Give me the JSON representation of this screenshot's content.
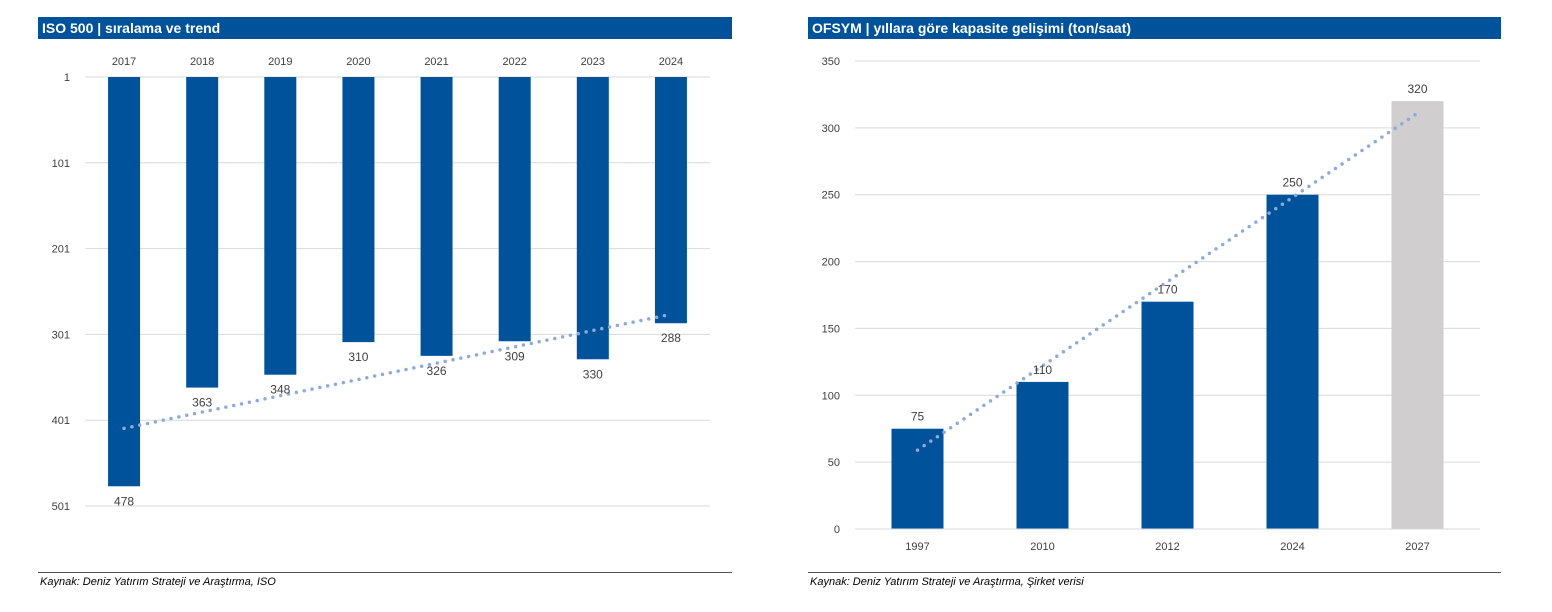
{
  "charts": [
    {
      "header": "ISO 500 | sıralama ve trend",
      "source": "Kaynak: Deniz Yatırım Strateji ve Araştırma, ISO"
    },
    {
      "header": "OFSYM | yıllara göre kapasite gelişimi (ton/saat)",
      "source": "Kaynak: Deniz Yatırım Strateji ve Araştırma, Şirket verisi"
    }
  ],
  "colors": {
    "header_bg": "#00529b",
    "bar": "#00529b",
    "bar_forecast": "#d0cece",
    "trendline": "#8eaadb",
    "grid": "#d9d9d9",
    "text": "#404040"
  },
  "chart_data": [
    {
      "type": "bar",
      "title": "ISO 500 | sıralama ve trend",
      "categories": [
        "2017",
        "2018",
        "2019",
        "2020",
        "2021",
        "2022",
        "2023",
        "2024"
      ],
      "series": [
        {
          "values": [
            478,
            363,
            348,
            310,
            326,
            309,
            330,
            288
          ]
        }
      ],
      "data_labels": [
        "478",
        "363",
        "348",
        "310",
        "326",
        "309",
        "330",
        "288"
      ],
      "y_axis": {
        "reversed": true,
        "ticks": [
          1,
          101,
          201,
          301,
          401,
          501
        ],
        "ylim": [
          1,
          501
        ]
      },
      "x_axis_position": "top",
      "trendline": {
        "type": "linear",
        "style": "dotted"
      },
      "grid": true,
      "legend": "none"
    },
    {
      "type": "bar",
      "title": "OFSYM | yıllara göre kapasite gelişimi (ton/saat)",
      "categories": [
        "1997",
        "2010",
        "2012",
        "2024",
        "2027"
      ],
      "series": [
        {
          "values": [
            75,
            110,
            170,
            250,
            320
          ]
        }
      ],
      "data_labels": [
        "75",
        "110",
        "170",
        "250",
        "320"
      ],
      "forecast_categories": [
        "2027"
      ],
      "y_axis": {
        "reversed": false,
        "ticks": [
          0,
          50,
          100,
          150,
          200,
          250,
          300,
          350
        ],
        "ylim": [
          0,
          350
        ]
      },
      "x_axis_position": "bottom",
      "trendline": {
        "type": "linear",
        "style": "dotted"
      },
      "grid": true,
      "legend": "none"
    }
  ]
}
